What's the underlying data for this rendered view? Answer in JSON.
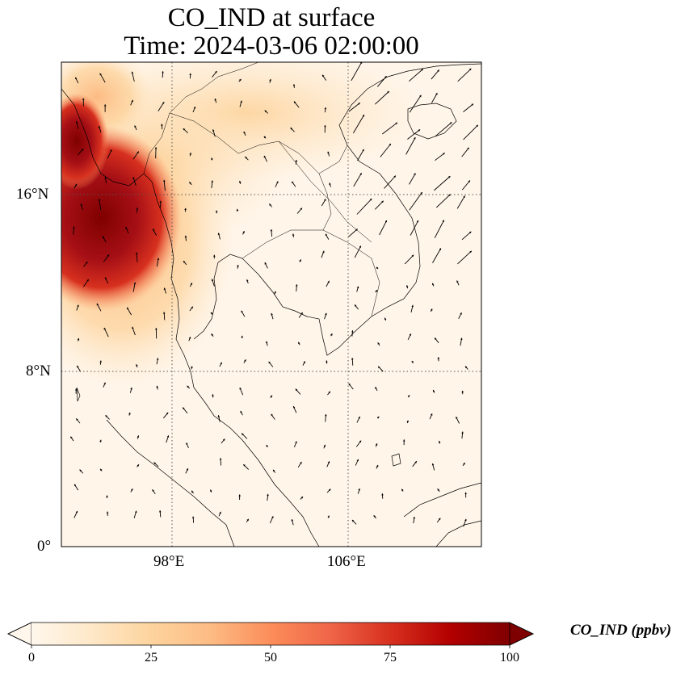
{
  "title": {
    "line1": "CO_IND at surface",
    "line2": "Time: 2024-03-06 02:00:00"
  },
  "map": {
    "variable": "CO_IND",
    "level": "surface",
    "lon_range": [
      93,
      112
    ],
    "lat_range": [
      0,
      22
    ],
    "y_ticks": [
      {
        "value": 16,
        "label": "16°N"
      },
      {
        "value": 8,
        "label": "8°N"
      },
      {
        "value": 0,
        "label": "0°"
      }
    ],
    "x_ticks": [
      {
        "value": 98,
        "label": "98°E"
      },
      {
        "value": 106,
        "label": "106°E"
      }
    ],
    "gridlines": "dotted",
    "wind_vectors": true,
    "high_concentration_region": "Myanmar / Andaman coast, 10°N–19°N, 93°E–99°E"
  },
  "colorbar": {
    "label": "CO_IND (ppbv)",
    "min": 0,
    "max": 100,
    "extend": "both",
    "colormap": "OrRd",
    "ticks": [
      {
        "value": 0,
        "label": "0"
      },
      {
        "value": 25,
        "label": "25"
      },
      {
        "value": 50,
        "label": "50"
      },
      {
        "value": 75,
        "label": "75"
      },
      {
        "value": 100,
        "label": "100"
      }
    ],
    "colors": [
      "#fff7ec",
      "#fee8c8",
      "#fdd49e",
      "#fdbb84",
      "#fc8d59",
      "#ef6548",
      "#d7301f",
      "#b30000",
      "#7f0000"
    ]
  }
}
